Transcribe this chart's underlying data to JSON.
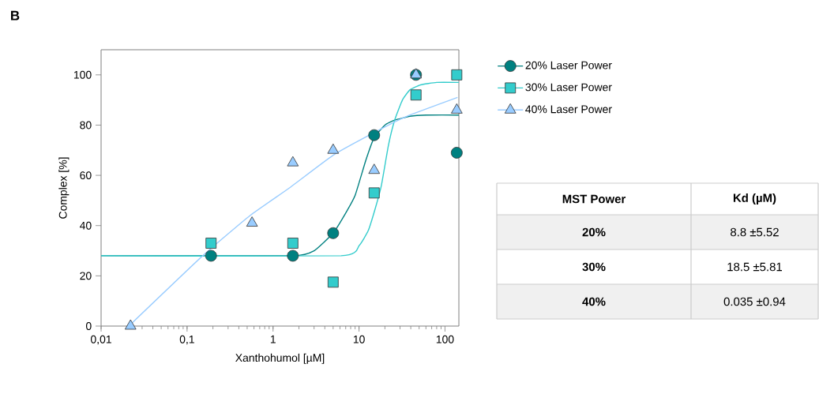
{
  "chart_data": {
    "type": "scatter",
    "title": "B",
    "xlabel": "Xanthohumol [µM]",
    "ylabel": "Complex [%]",
    "log": "x",
    "xlim": [
      0.01,
      145
    ],
    "ylim": [
      0,
      110
    ],
    "xticks": [
      {
        "value": 0.01,
        "label": "0,01"
      },
      {
        "value": 0.1,
        "label": "0,1"
      },
      1,
      10,
      100
    ],
    "yticks": [
      0,
      20,
      40,
      60,
      80,
      100
    ],
    "legend": "right",
    "grid": false,
    "series": [
      {
        "name": "20% Laser Power",
        "color": "#008080",
        "marker": "circle",
        "x": [
          0.19,
          1.7,
          5,
          15,
          46,
          137
        ],
        "values": [
          28,
          28,
          37,
          76,
          100,
          69
        ]
      },
      {
        "name": "30% Laser Power",
        "color": "#33cccc",
        "marker": "square",
        "x": [
          0.19,
          1.7,
          5,
          15,
          46,
          137
        ],
        "values": [
          33,
          33,
          17.5,
          53,
          92,
          100
        ]
      },
      {
        "name": "40% Laser Power",
        "color": "#99ccff",
        "marker": "triangle",
        "x": [
          0.022,
          0.57,
          1.7,
          5,
          15,
          46,
          137
        ],
        "values": [
          0,
          41,
          65,
          70,
          62,
          100,
          86
        ]
      },
      {
        "type": "line",
        "color": "#008080",
        "marker": "none",
        "x": [
          0.01,
          1.7,
          3,
          5,
          7,
          9,
          12,
          15,
          20,
          26,
          39,
          60,
          145
        ],
        "values": [
          28,
          28,
          30,
          37,
          45,
          52,
          66,
          75,
          80,
          82,
          83.5,
          84,
          84
        ]
      },
      {
        "type": "line",
        "color": "#33cccc",
        "marker": "none",
        "x": [
          0.01,
          6.2,
          10,
          12.8,
          15.5,
          18.2,
          22,
          26,
          32,
          39,
          52,
          80,
          145
        ],
        "values": [
          28,
          28,
          32,
          38,
          47,
          56,
          72,
          82,
          90,
          94,
          96,
          97,
          97
        ]
      },
      {
        "type": "line",
        "color": "#99ccff",
        "marker": "none",
        "x": [
          0.021,
          0.152,
          0.54,
          1.55,
          5,
          15,
          36,
          140
        ],
        "values": [
          0,
          28,
          44,
          55,
          68,
          77,
          83.5,
          91
        ]
      }
    ],
    "annotations": [
      "MST Power",
      "Kd (µM)",
      "20%",
      "8.8 ±5.52",
      "30%",
      "18.5 ±5.81",
      "40%",
      "0.035 ±0.94"
    ]
  }
}
